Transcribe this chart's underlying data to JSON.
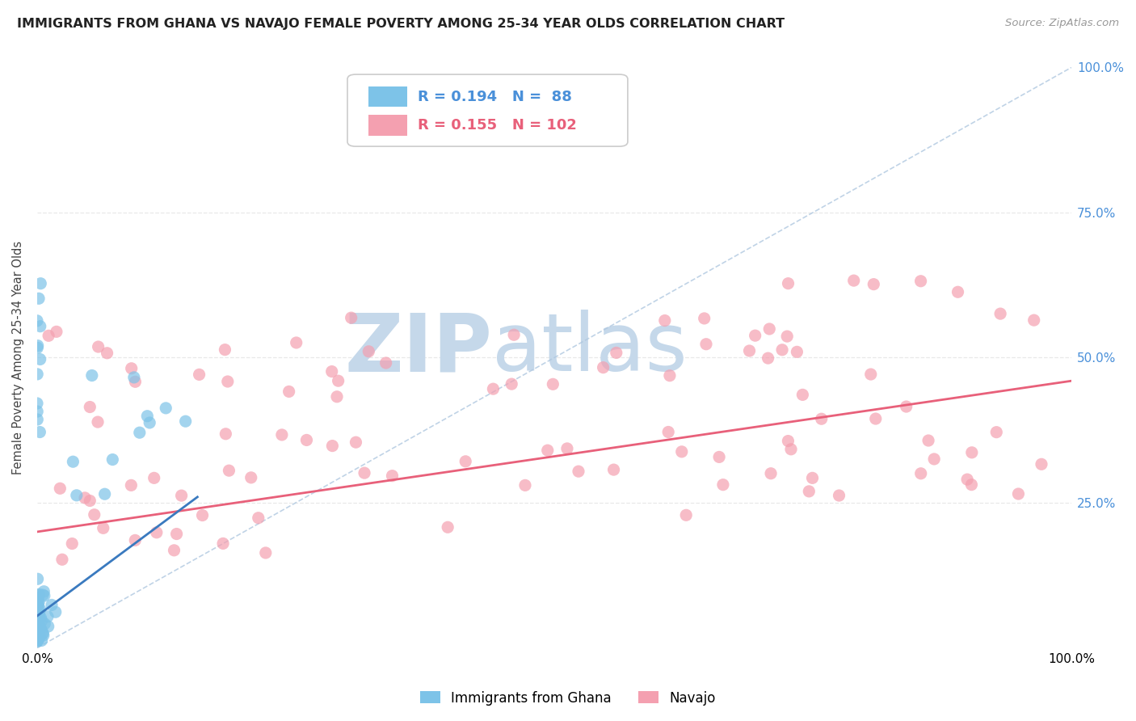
{
  "title": "IMMIGRANTS FROM GHANA VS NAVAJO FEMALE POVERTY AMONG 25-34 YEAR OLDS CORRELATION CHART",
  "source": "Source: ZipAtlas.com",
  "ylabel": "Female Poverty Among 25-34 Year Olds",
  "right_yticks": [
    0.25,
    0.5,
    0.75,
    1.0
  ],
  "right_yticklabels": [
    "25.0%",
    "50.0%",
    "75.0%",
    "100.0%"
  ],
  "legend_entries": [
    {
      "label": "Immigrants from Ghana",
      "R": 0.194,
      "N": 88,
      "color": "#7dc3e8"
    },
    {
      "label": "Navajo",
      "R": 0.155,
      "N": 102,
      "color": "#f4a0b0"
    }
  ],
  "watermark_zip": "ZIP",
  "watermark_atlas": "atlas",
  "watermark_color": "#c5d8ea",
  "ghana_scatter_color": "#7dc3e8",
  "navajo_scatter_color": "#f4a0b0",
  "ghana_line_color": "#3a7abf",
  "navajo_line_color": "#e8607a",
  "diag_line_color": "#b0c8e0",
  "background_color": "#ffffff",
  "grid_color": "#e8e8e8",
  "legend_r1": "R = 0.194",
  "legend_n1": "N =  88",
  "legend_r2": "R = 0.155",
  "legend_n2": "N = 102",
  "legend_text_color": "#4a90d9",
  "legend_text_color2": "#e8607a"
}
